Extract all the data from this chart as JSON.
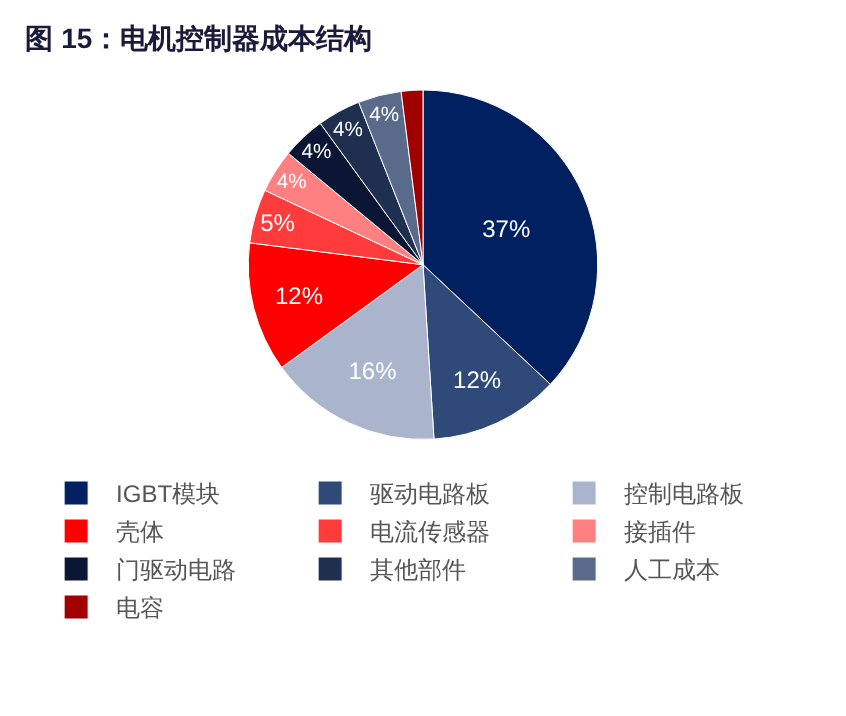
{
  "chart_data": {
    "type": "pie",
    "title": "图 15：电机控制器成本结构",
    "categories": [
      "IGBT模块",
      "驱动电路板",
      "控制电路板",
      "壳体",
      "电流传感器",
      "接插件",
      "门驱动电路",
      "其他部件",
      "人工成本",
      "电容"
    ],
    "values": [
      37,
      12,
      16,
      12,
      5,
      4,
      4,
      4,
      4,
      2
    ],
    "value_labels": [
      "37%",
      "12%",
      "16%",
      "12%",
      "5%",
      "4%",
      "4%",
      "4%",
      "4%",
      null
    ],
    "colors": [
      "#002060",
      "#2f4a78",
      "#aab4cc",
      "#ff0000",
      "#ff3b3b",
      "#ff8080",
      "#0a1634",
      "#1f2f4f",
      "#5a6a8a",
      "#a00000"
    ],
    "legend": "bottom"
  }
}
